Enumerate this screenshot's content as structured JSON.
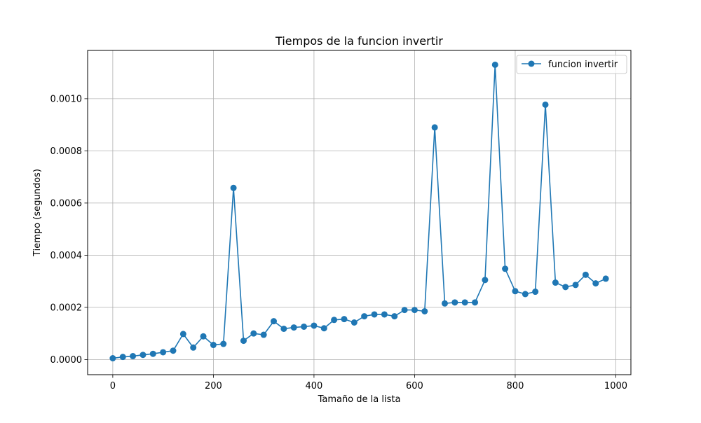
{
  "chart_data": {
    "type": "line",
    "title": "Tiempos de la funcion invertir",
    "xlabel": "Tamaño de la lista",
    "ylabel": "Tiempo (segundos)",
    "xlim": [
      -50,
      1030
    ],
    "ylim": [
      -5.8e-05,
      0.001185
    ],
    "grid": true,
    "legend_position": "top-right",
    "x_ticks": [
      0,
      200,
      400,
      600,
      800,
      1000
    ],
    "x_tick_labels": [
      "0",
      "200",
      "400",
      "600",
      "800",
      "1000"
    ],
    "y_ticks": [
      0,
      0.0002,
      0.0004,
      0.0006,
      0.0008,
      0.001
    ],
    "y_tick_labels": [
      "0.0000",
      "0.0002",
      "0.0004",
      "0.0006",
      "0.0008",
      "0.0010"
    ],
    "series": [
      {
        "name": "funcion invertir",
        "color": "#1f77b4",
        "marker": "circle",
        "x": [
          0,
          20,
          40,
          60,
          80,
          100,
          120,
          140,
          160,
          180,
          200,
          220,
          240,
          260,
          280,
          300,
          320,
          340,
          360,
          380,
          400,
          420,
          440,
          460,
          480,
          500,
          520,
          540,
          560,
          580,
          600,
          620,
          640,
          660,
          680,
          700,
          720,
          740,
          760,
          780,
          800,
          820,
          840,
          860,
          880,
          900,
          920,
          940,
          960,
          980
        ],
        "values": [
          5e-06,
          1e-05,
          1.3e-05,
          1.8e-05,
          2.2e-05,
          2.8e-05,
          3.4e-05,
          9.8e-05,
          4.6e-05,
          8.9e-05,
          5.6e-05,
          6e-05,
          0.000658,
          7.2e-05,
          0.0001,
          9.5e-05,
          0.000147,
          0.000118,
          0.000123,
          0.000126,
          0.00013,
          0.00012,
          0.000152,
          0.000155,
          0.000142,
          0.000166,
          0.000173,
          0.000173,
          0.000166,
          0.00019,
          0.00019,
          0.000185,
          0.00089,
          0.000215,
          0.000219,
          0.000219,
          0.000219,
          0.000305,
          0.00113,
          0.000348,
          0.000262,
          0.000251,
          0.00026,
          0.000977,
          0.000295,
          0.000278,
          0.000286,
          0.000325,
          0.000292,
          0.00031
        ]
      }
    ]
  }
}
